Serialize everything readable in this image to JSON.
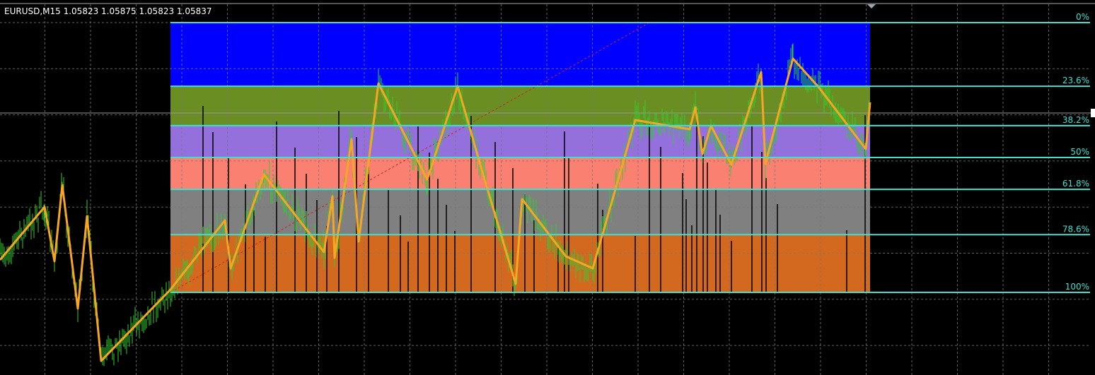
{
  "header": {
    "title": "EURUSD,M15  1.05823 1.05875 1.05823 1.05837"
  },
  "fibonacci": {
    "levels": [
      {
        "value": 0,
        "label": "0%"
      },
      {
        "value": 23.6,
        "label": "23.6%"
      },
      {
        "value": 38.2,
        "label": "38.2%"
      },
      {
        "value": 50,
        "label": "50%"
      },
      {
        "value": 61.8,
        "label": "61.8%"
      },
      {
        "value": 78.6,
        "label": "78.6%"
      },
      {
        "value": 100,
        "label": "100%"
      }
    ],
    "zone_colors": [
      "#0000ff",
      "#6b8e23",
      "#9370db",
      "#fa8072",
      "#808080",
      "#d2691e"
    ],
    "line_color": "#40e0d0"
  }
}
